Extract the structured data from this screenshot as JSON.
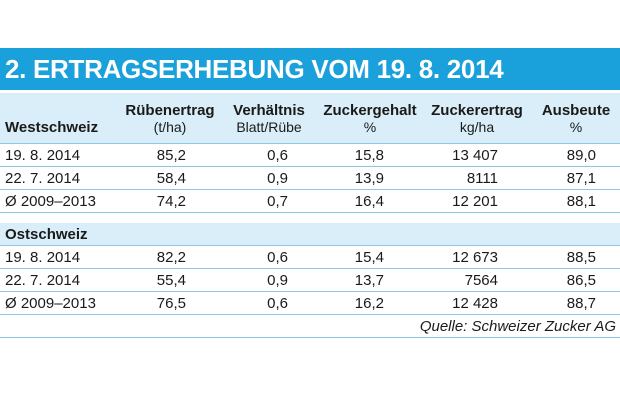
{
  "title": "2. ERTRAGSERHEBUNG VOM 19. 8. 2014",
  "header": {
    "columns": [
      {
        "label": "Rübenertrag",
        "unit": "(t/ha)"
      },
      {
        "label": "Verhältnis",
        "unit": "Blatt/Rübe"
      },
      {
        "label": "Zuckergehalt",
        "unit": "%"
      },
      {
        "label": "Zuckerertrag",
        "unit": "kg/ha"
      },
      {
        "label": "Ausbeute",
        "unit": "%"
      }
    ]
  },
  "regions": [
    {
      "name": "Westschweiz",
      "rows": [
        {
          "label": "19. 8. 2014",
          "values": [
            "85,2",
            "0,6",
            "15,8",
            "13 407",
            "89,0"
          ]
        },
        {
          "label": "22. 7. 2014",
          "values": [
            "58,4",
            "0,9",
            "13,9",
            "8111",
            "87,1"
          ]
        },
        {
          "label": "Ø 2009–2013",
          "values": [
            "74,2",
            "0,7",
            "16,4",
            "12 201",
            "88,1"
          ]
        }
      ]
    },
    {
      "name": "Ostschweiz",
      "rows": [
        {
          "label": "19. 8. 2014",
          "values": [
            "82,2",
            "0,6",
            "15,4",
            "12 673",
            "88,5"
          ]
        },
        {
          "label": "22. 7. 2014",
          "values": [
            "55,4",
            "0,9",
            "13,7",
            "7564",
            "86,5"
          ]
        },
        {
          "label": "Ø 2009–2013",
          "values": [
            "76,5",
            "0,6",
            "16,2",
            "12 428",
            "88,7"
          ]
        }
      ]
    }
  ],
  "source": "Quelle: Schweizer Zucker AG",
  "colors": {
    "title_bg": "#1aa0da",
    "header_bg": "#d9eef8",
    "rule": "#8cc8e6"
  }
}
